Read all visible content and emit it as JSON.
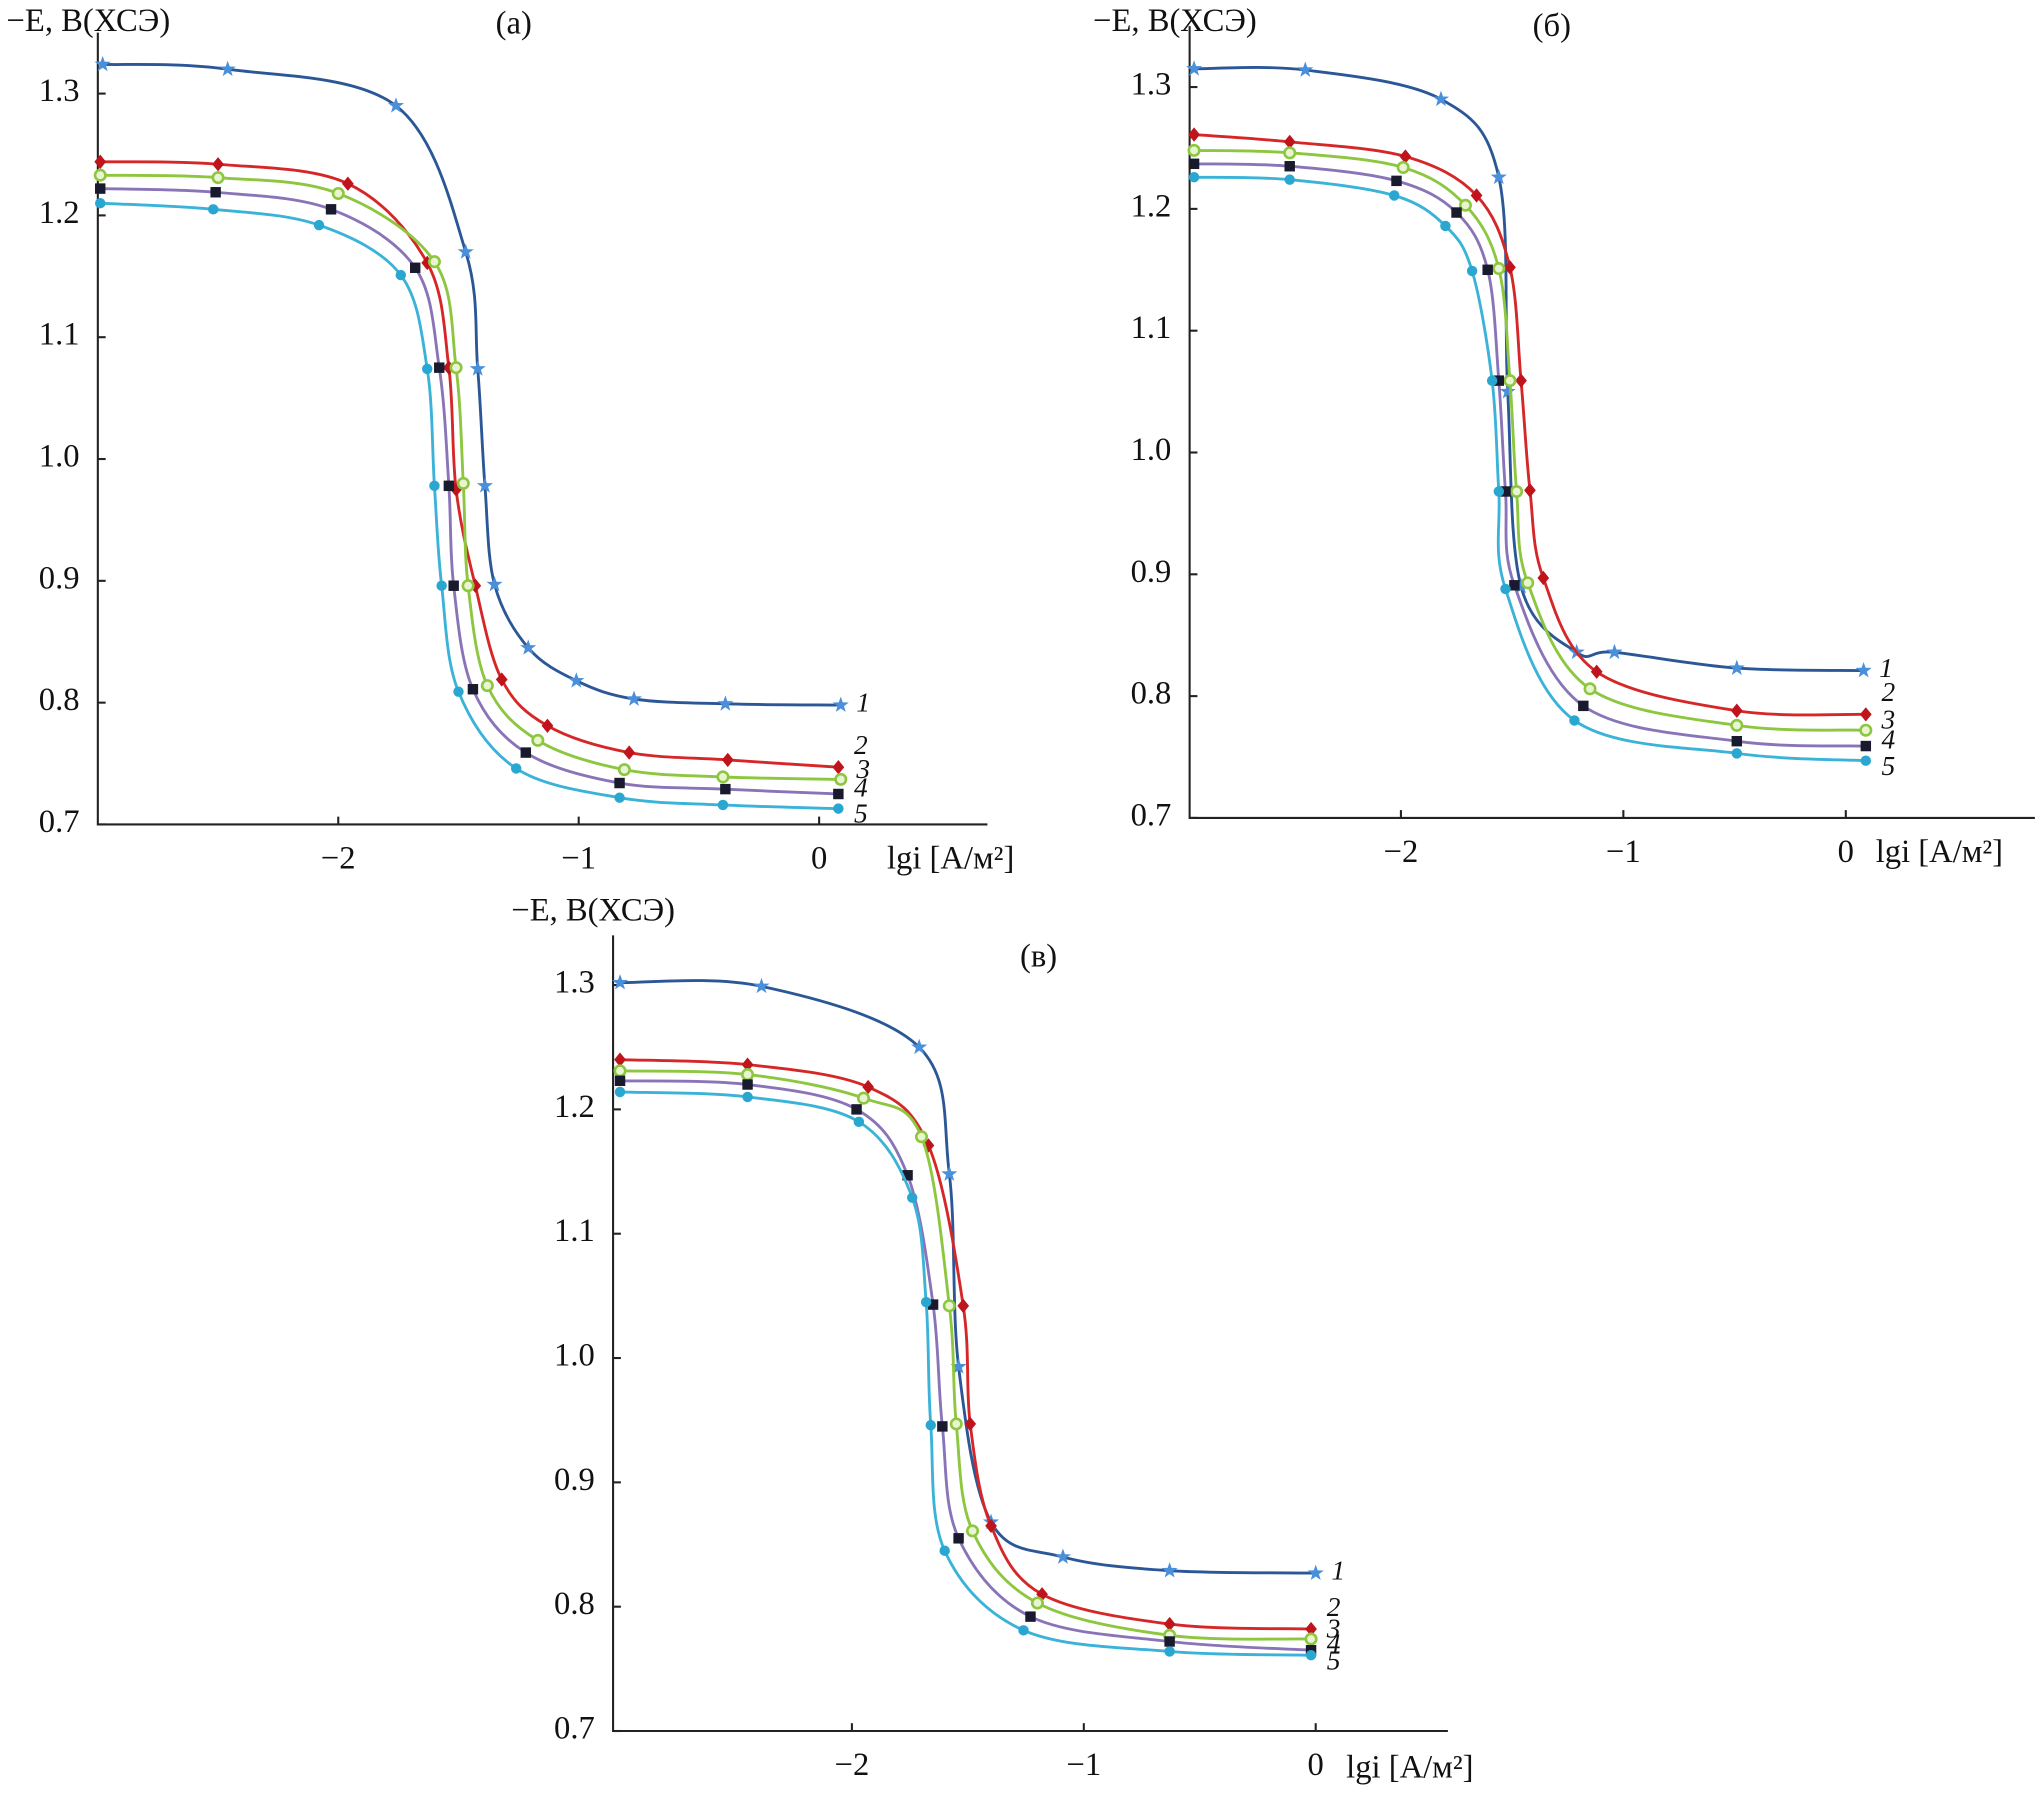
{
  "chart_data": [
    {
      "type": "line",
      "panel": "(а)",
      "ylabel": "−E, В(ХСЭ)",
      "xlabel": "lgi [А/м²]",
      "xlim": [
        -3.0,
        0.7
      ],
      "ylim": [
        0.7,
        1.35
      ],
      "xticks": [
        {
          "value": -2,
          "label": "−2"
        },
        {
          "value": -1,
          "label": "−1"
        },
        0
      ],
      "yticks": [
        0.7,
        0.8,
        0.9,
        {
          "value": 1,
          "label": "1.0"
        },
        1.1,
        1.2,
        1.3
      ],
      "series": [
        {
          "name": "1",
          "color": "#2b5797",
          "marker_color": "#4a8fd9",
          "marker": "star",
          "x": [
            -2.98,
            -2.46,
            -1.76,
            -1.47,
            -1.42,
            -1.39,
            -1.35,
            -1.21,
            -1.01,
            -0.77,
            -0.39,
            0.09
          ],
          "y": [
            1.324,
            1.32,
            1.29,
            1.17,
            1.074,
            0.978,
            0.897,
            0.845,
            0.818,
            0.803,
            0.799,
            0.798
          ]
        },
        {
          "name": "2",
          "color": "#d62728",
          "marker_color": "#c0141c",
          "marker": "diamond",
          "x": [
            -2.99,
            -2.5,
            -1.96,
            -1.63,
            -1.54,
            -1.51,
            -1.43,
            -1.32,
            -1.13,
            -0.79,
            -0.38,
            0.08
          ],
          "y": [
            1.244,
            1.242,
            1.226,
            1.161,
            1.075,
            0.975,
            0.896,
            0.819,
            0.781,
            0.759,
            0.753,
            0.747
          ]
        },
        {
          "name": "3",
          "color": "#8dc63f",
          "marker_color": "#8dc63f",
          "marker": "circle",
          "x": [
            -2.99,
            -2.5,
            -2.0,
            -1.6,
            -1.51,
            -1.48,
            -1.46,
            -1.38,
            -1.17,
            -0.81,
            -0.4,
            0.09
          ],
          "y": [
            1.233,
            1.231,
            1.218,
            1.162,
            1.075,
            0.98,
            0.896,
            0.814,
            0.769,
            0.745,
            0.739,
            0.737
          ]
        },
        {
          "name": "4",
          "color": "#8a74b8",
          "marker_color": "#1a1a2e",
          "marker": "square",
          "x": [
            -2.99,
            -2.51,
            -2.03,
            -1.68,
            -1.58,
            -1.54,
            -1.52,
            -1.44,
            -1.22,
            -0.83,
            -0.39,
            0.08
          ],
          "y": [
            1.222,
            1.219,
            1.205,
            1.157,
            1.075,
            0.978,
            0.896,
            0.811,
            0.759,
            0.734,
            0.729,
            0.725
          ]
        },
        {
          "name": "5",
          "color": "#3bb3d8",
          "marker_color": "#2aa7d0",
          "marker": "dot",
          "x": [
            -2.99,
            -2.52,
            -2.08,
            -1.74,
            -1.63,
            -1.6,
            -1.57,
            -1.5,
            -1.26,
            -0.83,
            -0.4,
            0.08
          ],
          "y": [
            1.21,
            1.205,
            1.192,
            1.151,
            1.074,
            0.978,
            0.896,
            0.809,
            0.746,
            0.722,
            0.716,
            0.713
          ]
        }
      ]
    },
    {
      "type": "line",
      "panel": "(б)",
      "ylabel": "−E, В(ХСЭ)",
      "xlabel": "lgi [А/м²]",
      "xlim": [
        -2.95,
        0.85
      ],
      "ylim": [
        0.7,
        1.35
      ],
      "xticks": [
        {
          "value": -2,
          "label": "−2"
        },
        {
          "value": -1,
          "label": "−1"
        },
        0
      ],
      "yticks": [
        0.7,
        0.8,
        0.9,
        {
          "value": 1,
          "label": "1.0"
        },
        1.1,
        1.2,
        1.3
      ],
      "series": [
        {
          "name": "1",
          "color": "#2b5797",
          "marker_color": "#4a8fd9",
          "marker": "star",
          "x": [
            -2.93,
            -2.43,
            -1.82,
            -1.56,
            -1.52,
            -1.46,
            -1.21,
            -1.04,
            -0.49,
            0.08
          ],
          "y": [
            1.315,
            1.314,
            1.29,
            1.226,
            1.05,
            0.89,
            0.836,
            0.836,
            0.823,
            0.821
          ]
        },
        {
          "name": "2",
          "color": "#d62728",
          "marker_color": "#c0141c",
          "marker": "diamond",
          "x": [
            -2.93,
            -2.5,
            -1.98,
            -1.66,
            -1.51,
            -1.46,
            -1.42,
            -1.36,
            -1.12,
            -0.49,
            0.09
          ],
          "y": [
            1.261,
            1.255,
            1.243,
            1.211,
            1.152,
            1.059,
            0.969,
            0.897,
            0.82,
            0.788,
            0.785
          ]
        },
        {
          "name": "3",
          "color": "#8dc63f",
          "marker_color": "#8dc63f",
          "marker": "circle",
          "x": [
            -2.93,
            -2.5,
            -1.99,
            -1.71,
            -1.56,
            -1.51,
            -1.48,
            -1.43,
            -1.15,
            -0.49,
            0.09
          ],
          "y": [
            1.248,
            1.246,
            1.234,
            1.203,
            1.151,
            1.059,
            0.968,
            0.893,
            0.806,
            0.776,
            0.772
          ]
        },
        {
          "name": "4",
          "color": "#8a74b8",
          "marker_color": "#1a1a2e",
          "marker": "square",
          "x": [
            -2.93,
            -2.5,
            -2.02,
            -1.75,
            -1.61,
            -1.56,
            -1.53,
            -1.49,
            -1.18,
            -0.49,
            0.09
          ],
          "y": [
            1.237,
            1.235,
            1.223,
            1.197,
            1.15,
            1.059,
            0.968,
            0.891,
            0.792,
            0.763,
            0.759
          ]
        },
        {
          "name": "5",
          "color": "#3bb3d8",
          "marker_color": "#2aa7d0",
          "marker": "dot",
          "x": [
            -2.93,
            -2.5,
            -2.03,
            -1.8,
            -1.68,
            -1.59,
            -1.56,
            -1.53,
            -1.22,
            -0.49,
            0.09
          ],
          "y": [
            1.226,
            1.224,
            1.211,
            1.186,
            1.149,
            1.059,
            0.968,
            0.888,
            0.78,
            0.753,
            0.747
          ]
        }
      ]
    },
    {
      "type": "line",
      "panel": "(в)",
      "ylabel": "−E, В(ХСЭ)",
      "xlabel": "lgi [А/м²]",
      "xlim": [
        -3.03,
        0.57
      ],
      "ylim": [
        0.7,
        1.34
      ],
      "xticks": [
        {
          "value": -2,
          "label": "−2"
        },
        {
          "value": -1,
          "label": "−1"
        },
        0
      ],
      "yticks": [
        0.7,
        0.8,
        0.9,
        {
          "value": 1,
          "label": "1.0"
        },
        1.1,
        1.2,
        1.3
      ],
      "series": [
        {
          "name": "1",
          "color": "#2b5797",
          "marker_color": "#4a8fd9",
          "marker": "star",
          "x": [
            -3.0,
            -2.39,
            -1.71,
            -1.58,
            -1.54,
            -1.4,
            -1.09,
            -0.63,
            0
          ],
          "y": [
            1.302,
            1.299,
            1.25,
            1.148,
            0.993,
            0.868,
            0.84,
            0.829,
            0.827
          ]
        },
        {
          "name": "2",
          "color": "#d62728",
          "marker_color": "#c0141c",
          "marker": "diamond",
          "x": [
            -3.0,
            -2.45,
            -1.93,
            -1.67,
            -1.52,
            -1.49,
            -1.4,
            -1.18,
            -0.63,
            -0.02
          ],
          "y": [
            1.24,
            1.236,
            1.218,
            1.171,
            1.042,
            0.947,
            0.865,
            0.81,
            0.786,
            0.782
          ]
        },
        {
          "name": "3",
          "color": "#8dc63f",
          "marker_color": "#8dc63f",
          "marker": "circle",
          "x": [
            -3.0,
            -2.45,
            -1.95,
            -1.7,
            -1.58,
            -1.55,
            -1.48,
            -1.2,
            -0.63,
            -0.02
          ],
          "y": [
            1.231,
            1.228,
            1.209,
            1.178,
            1.042,
            0.947,
            0.861,
            0.803,
            0.777,
            0.774
          ]
        },
        {
          "name": "4",
          "color": "#8a74b8",
          "marker_color": "#1a1a2e",
          "marker": "square",
          "x": [
            -3.0,
            -2.45,
            -1.98,
            -1.76,
            -1.65,
            -1.61,
            -1.54,
            -1.23,
            -0.63,
            -0.02
          ],
          "y": [
            1.223,
            1.22,
            1.2,
            1.147,
            1.043,
            0.945,
            0.855,
            0.792,
            0.772,
            0.765
          ]
        },
        {
          "name": "5",
          "color": "#3bb3d8",
          "marker_color": "#2aa7d0",
          "marker": "dot",
          "x": [
            -3.0,
            -2.45,
            -1.97,
            -1.74,
            -1.68,
            -1.66,
            -1.6,
            -1.26,
            -0.63,
            -0.02
          ],
          "y": [
            1.214,
            1.21,
            1.19,
            1.129,
            1.045,
            0.946,
            0.845,
            0.781,
            0.764,
            0.761
          ]
        }
      ]
    }
  ]
}
